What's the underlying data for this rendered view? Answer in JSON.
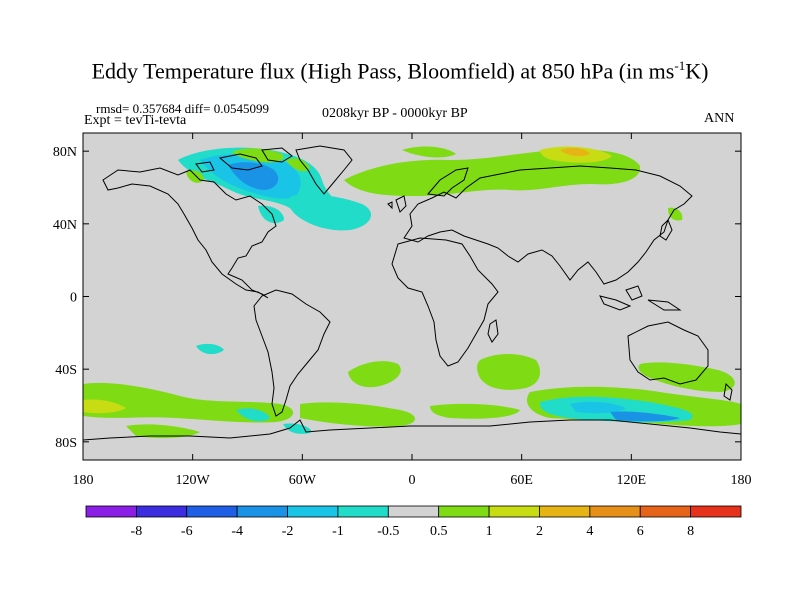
{
  "title": {
    "main": "Eddy Temperature flux (High Pass, Bloomfield) at 850 hPa (in ms",
    "sup": "-1",
    "end": "K)"
  },
  "stats": "rmsd= 0.357684 diff= 0.0545099",
  "experiment": "Expt = tevTi-tevta",
  "period": "0208kyr BP - 0000kyr BP",
  "season": "ANN",
  "axes": {
    "lat_ticks": [
      {
        "value": 80,
        "label": "80N"
      },
      {
        "value": 40,
        "label": "40N"
      },
      {
        "value": 0,
        "label": "0"
      },
      {
        "value": -40,
        "label": "40S"
      },
      {
        "value": -80,
        "label": "80S"
      }
    ],
    "lon_ticks": [
      {
        "value": -180,
        "label": "180"
      },
      {
        "value": -120,
        "label": "120W"
      },
      {
        "value": -60,
        "label": "60W"
      },
      {
        "value": 0,
        "label": "0"
      },
      {
        "value": 60,
        "label": "60E"
      },
      {
        "value": 120,
        "label": "120E"
      },
      {
        "value": 180,
        "label": "180"
      }
    ],
    "lon_range": [
      -180,
      180
    ],
    "lat_range": [
      -90,
      90
    ]
  },
  "colorbar": {
    "levels": [
      "-8",
      "-6",
      "-4",
      "-2",
      "-1",
      "-0.5",
      "0.5",
      "1",
      "2",
      "4",
      "6",
      "8"
    ],
    "colors": [
      "#8c1fe6",
      "#3c2ee0",
      "#1f5fe6",
      "#1a93e6",
      "#1ac4e6",
      "#20dcc8",
      "#d3d3d3",
      "#7fdc14",
      "#c8dc14",
      "#e6b414",
      "#e6901a",
      "#e6641a",
      "#e6321a"
    ]
  },
  "map_colors": {
    "neutral": "#d3d3d3",
    "coast": "#000000"
  }
}
